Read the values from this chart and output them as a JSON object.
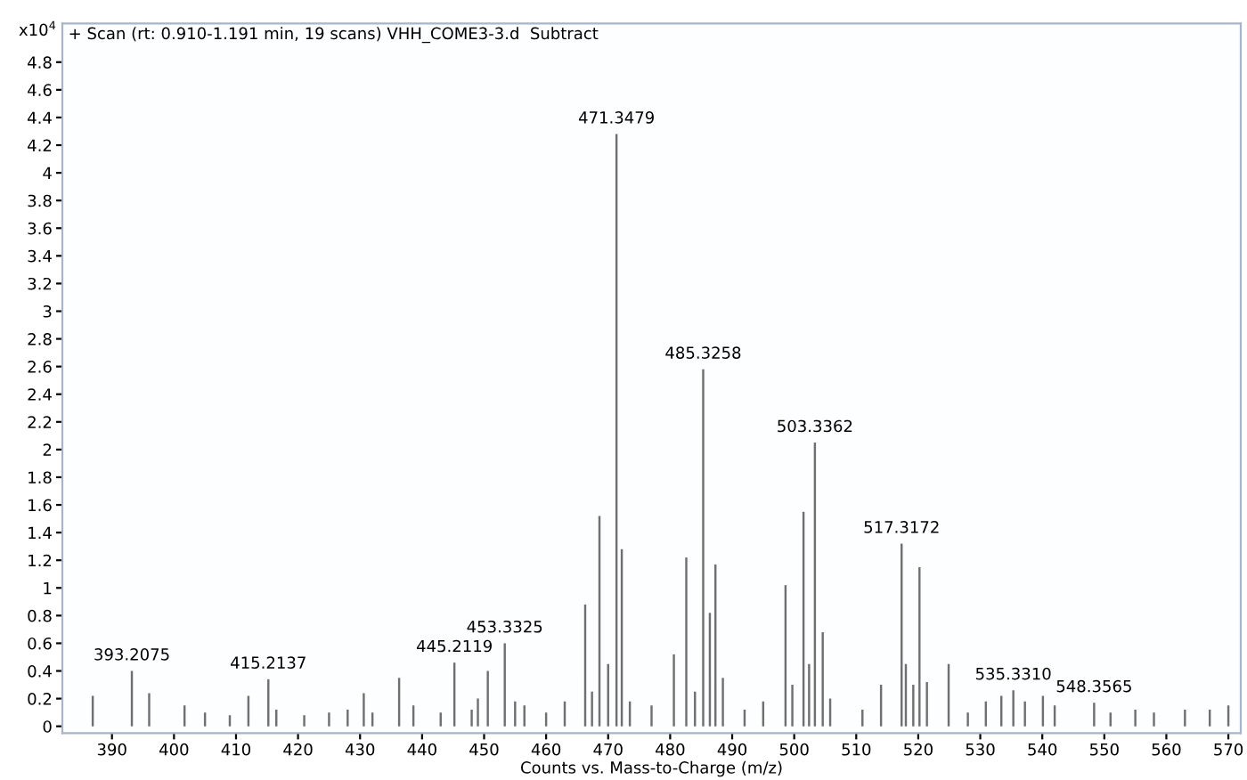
{
  "chart_data": {
    "type": "bar",
    "title": "+ Scan (rt: 0.910-1.191 min, 19 scans) VHH_COME3-3.d  Subtract",
    "xlabel": "Counts vs. Mass-to-Charge (m/z)",
    "ylabel": "x10$^{4}$",
    "x": [
      386.9,
      393.2075,
      396,
      401.7,
      405,
      409,
      412,
      415.2137,
      416.5,
      421,
      425,
      428,
      430.6,
      432,
      436.3,
      438.6,
      443,
      445.2119,
      448,
      449,
      450.6,
      453.3325,
      455,
      456.5,
      460,
      463,
      466.3,
      467.4,
      468.6,
      470,
      471.3479,
      472.2,
      473.5,
      477,
      480.6,
      482.6,
      484,
      485.3258,
      486.4,
      487.3,
      488.5,
      492,
      495,
      498.6,
      499.7,
      501.5,
      502.4,
      503.3362,
      504.6,
      505.8,
      511,
      514,
      517.3172,
      518,
      519.2,
      520.2,
      521.4,
      524.9,
      528,
      530.9,
      533.4,
      535.331,
      537.2,
      540.1,
      542,
      548.3565,
      551,
      555,
      558,
      563,
      567,
      570
    ],
    "values": [
      0.22,
      0.4,
      0.24,
      0.15,
      0.1,
      0.08,
      0.22,
      0.34,
      0.12,
      0.08,
      0.1,
      0.12,
      0.24,
      0.1,
      0.35,
      0.15,
      0.1,
      0.46,
      0.12,
      0.2,
      0.4,
      0.6,
      0.18,
      0.15,
      0.1,
      0.18,
      0.88,
      0.25,
      1.52,
      0.45,
      4.28,
      1.28,
      0.18,
      0.15,
      0.52,
      1.22,
      0.25,
      2.58,
      0.82,
      1.17,
      0.35,
      0.12,
      0.18,
      1.02,
      0.3,
      1.55,
      0.45,
      2.05,
      0.68,
      0.2,
      0.12,
      0.3,
      1.32,
      0.45,
      0.3,
      1.15,
      0.32,
      0.45,
      0.1,
      0.18,
      0.22,
      0.26,
      0.18,
      0.22,
      0.15,
      0.17,
      0.1,
      0.12,
      0.1,
      0.12,
      0.12,
      0.15
    ],
    "color": "#707070",
    "annotations": [
      {
        "text": "393.2075",
        "x": 393.2075,
        "y": 0.4
      },
      {
        "text": "415.2137",
        "x": 415.2137,
        "y": 0.34
      },
      {
        "text": "445.2119",
        "x": 445.2119,
        "y": 0.46
      },
      {
        "text": "453.3325",
        "x": 453.3325,
        "y": 0.6
      },
      {
        "text": "471.3479",
        "x": 471.3479,
        "y": 4.28
      },
      {
        "text": "485.3258",
        "x": 485.3258,
        "y": 2.58
      },
      {
        "text": "503.3362",
        "x": 503.3362,
        "y": 2.05
      },
      {
        "text": "517.3172",
        "x": 517.3172,
        "y": 1.32
      },
      {
        "text": "535.3310",
        "x": 535.331,
        "y": 0.26
      },
      {
        "text": "548.3565",
        "x": 548.3565,
        "y": 0.17
      }
    ],
    "xlim": [
      382,
      572
    ],
    "ylim": [
      -0.05,
      5.08
    ],
    "xticks": [
      390,
      400,
      410,
      420,
      430,
      440,
      450,
      460,
      470,
      480,
      490,
      500,
      510,
      520,
      530,
      540,
      550,
      560,
      570
    ],
    "yticks": [
      0,
      0.2,
      0.4,
      0.6,
      0.8,
      1,
      1.2,
      1.4,
      1.6,
      1.8,
      2,
      2.2,
      2.4,
      2.6,
      2.8,
      3,
      3.2,
      3.4,
      3.6,
      3.8,
      4,
      4.2,
      4.4,
      4.6,
      4.8
    ],
    "grid": false,
    "legend": false
  }
}
